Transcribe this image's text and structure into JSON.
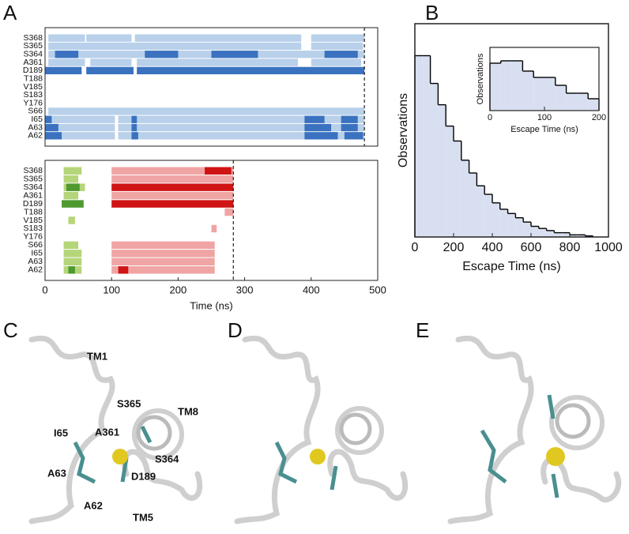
{
  "panel_labels": [
    "A",
    "B",
    "C",
    "D",
    "E"
  ],
  "chart_data": [
    {
      "type": "contact_map",
      "rows": [
        "S368",
        "S365",
        "S364",
        "A361",
        "D189",
        "T188",
        "V185",
        "S183",
        "Y176",
        "S66",
        "I65",
        "A63",
        "A62"
      ],
      "xlim": [
        0,
        500
      ],
      "vline": 480,
      "series": [
        {
          "color": "#b8d0ea",
          "values": [
            [
              [
                5,
                60
              ],
              [
                62,
                130
              ],
              [
                135,
                385
              ],
              [
                400,
                480
              ]
            ],
            [
              [
                5,
                385
              ],
              [
                400,
                478
              ]
            ],
            [
              [
                5,
                480
              ]
            ],
            [
              [
                5,
                60
              ],
              [
                68,
                130
              ],
              [
                138,
                380
              ],
              [
                400,
                475
              ]
            ],
            [],
            [],
            [],
            [],
            [],
            [
              [
                5,
                480
              ]
            ],
            [
              [
                0,
                105
              ],
              [
                110,
                480
              ]
            ],
            [
              [
                0,
                105
              ],
              [
                110,
                480
              ]
            ],
            [
              [
                0,
                105
              ],
              [
                110,
                480
              ]
            ]
          ]
        },
        {
          "color": "#3a72c0",
          "values": [
            [],
            [],
            [
              [
                15,
                50
              ],
              [
                150,
                200
              ],
              [
                250,
                320
              ],
              [
                420,
                470
              ]
            ],
            [],
            [
              [
                0,
                55
              ],
              [
                62,
                133
              ],
              [
                138,
                480
              ]
            ],
            [],
            [],
            [],
            [],
            [],
            [
              [
                0,
                10
              ],
              [
                130,
                138
              ],
              [
                390,
                420
              ],
              [
                445,
                470
              ]
            ],
            [
              [
                0,
                20
              ],
              [
                130,
                138
              ],
              [
                390,
                430
              ],
              [
                445,
                470
              ]
            ],
            [
              [
                0,
                25
              ],
              [
                130,
                140
              ],
              [
                390,
                440
              ],
              [
                450,
                478
              ]
            ]
          ]
        }
      ]
    },
    {
      "type": "contact_map",
      "rows": [
        "S368",
        "S365",
        "S364",
        "A361",
        "D189",
        "T188",
        "V185",
        "S183",
        "Y176",
        "S66",
        "I65",
        "A63",
        "A62"
      ],
      "xlim": [
        0,
        500
      ],
      "xticks": [
        0,
        100,
        200,
        300,
        400,
        500
      ],
      "xlabel": "Time (ns)",
      "vline": 283,
      "series": [
        {
          "color": "#b5d57a",
          "values": [
            [
              [
                28,
                55
              ]
            ],
            [
              [
                28,
                50
              ]
            ],
            [
              [
                28,
                60
              ]
            ],
            [
              [
                28,
                50
              ]
            ],
            [],
            [],
            [
              [
                35,
                45
              ]
            ],
            [],
            [],
            [
              [
                28,
                50
              ]
            ],
            [
              [
                28,
                55
              ]
            ],
            [
              [
                28,
                55
              ]
            ],
            [
              [
                28,
                55
              ]
            ]
          ]
        },
        {
          "color": "#4f9a30",
          "values": [
            [],
            [],
            [
              [
                32,
                52
              ]
            ],
            [],
            [
              [
                25,
                58
              ]
            ],
            [],
            [],
            [],
            [],
            [],
            [],
            [],
            [
              [
                35,
                45
              ]
            ]
          ]
        },
        {
          "color": "#f0a4a4",
          "values": [
            [
              [
                100,
                283
              ]
            ],
            [
              [
                100,
                283
              ]
            ],
            [],
            [
              [
                100,
                283
              ]
            ],
            [],
            [
              [
                270,
                283
              ]
            ],
            [],
            [
              [
                250,
                258
              ]
            ],
            [],
            [
              [
                100,
                255
              ]
            ],
            [
              [
                100,
                255
              ]
            ],
            [
              [
                100,
                255
              ]
            ],
            [
              [
                100,
                255
              ]
            ]
          ]
        },
        {
          "color": "#d01414",
          "values": [
            [
              [
                240,
                280
              ]
            ],
            [],
            [
              [
                100,
                283
              ]
            ],
            [],
            [
              [
                100,
                283
              ]
            ],
            [],
            [],
            [],
            [],
            [],
            [],
            [],
            [
              [
                110,
                125
              ]
            ]
          ]
        }
      ]
    },
    {
      "type": "histogram",
      "xlabel": "Escape Time (ns)",
      "ylabel": "Observations",
      "xlim": [
        0,
        1000
      ],
      "xticks": [
        0,
        200,
        400,
        600,
        800,
        1000
      ],
      "ylim": [
        0,
        100
      ],
      "fill": "#d8dff0",
      "color": "#000000",
      "bins": [
        0,
        40,
        80,
        120,
        160,
        200,
        240,
        280,
        320,
        360,
        400,
        440,
        480,
        520,
        560,
        600,
        640,
        680,
        720,
        760,
        800,
        840,
        880,
        920
      ],
      "values": [
        85,
        85,
        72,
        62,
        52,
        45,
        36,
        30,
        24,
        20,
        16,
        13,
        11,
        9,
        7,
        5,
        4,
        3,
        2,
        2,
        1,
        1,
        0.5
      ]
    },
    {
      "type": "histogram",
      "xlabel": "Escape Time (ns)",
      "ylabel": "Observations",
      "xlim": [
        0,
        200
      ],
      "xticks": [
        0,
        100,
        200
      ],
      "ylim": [
        0,
        80
      ],
      "fill": "#d8dff0",
      "color": "#000000",
      "bins": [
        0,
        20,
        40,
        60,
        80,
        100,
        120,
        140,
        160,
        180,
        200
      ],
      "values": [
        60,
        63,
        63,
        50,
        42,
        42,
        32,
        22,
        22,
        15
      ]
    }
  ],
  "structures": {
    "C": {
      "labels": [
        "TM1",
        "TM8",
        "S365",
        "A361",
        "S364",
        "I65",
        "D189",
        "A63",
        "A62",
        "TM5"
      ]
    }
  }
}
